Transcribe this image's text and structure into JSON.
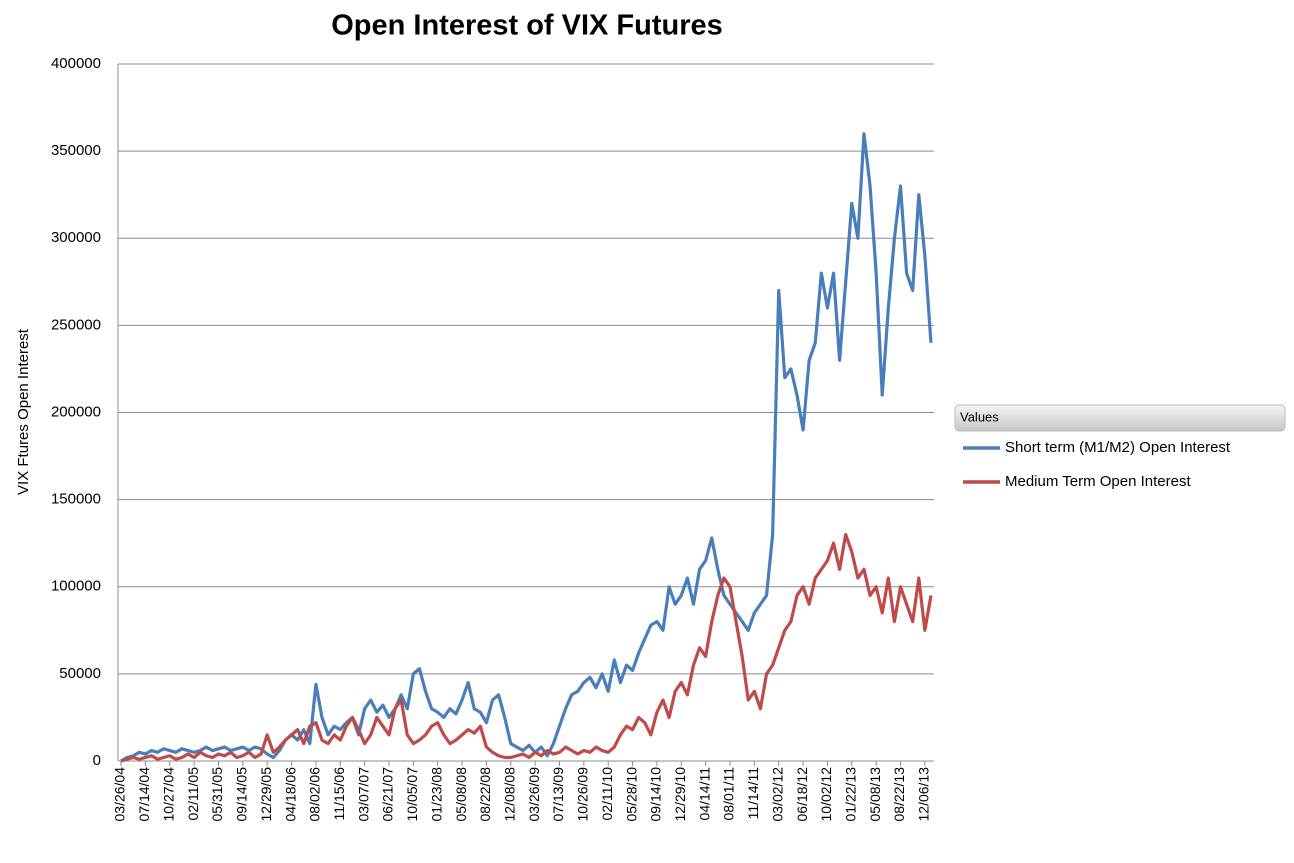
{
  "chart_data": {
    "type": "line",
    "title": "Open Interest of VIX Futures",
    "y_label": "VIX Ftures Open Interest",
    "legend_title": "Values",
    "legend": "right",
    "grid": true,
    "ylim": [
      0,
      400000
    ],
    "yticks": [
      0,
      50000,
      100000,
      150000,
      200000,
      250000,
      300000,
      350000,
      400000
    ],
    "categories": [
      "03/26/04",
      null,
      null,
      null,
      "07/14/04",
      null,
      null,
      null,
      "10/27/04",
      null,
      null,
      null,
      "02/11/05",
      null,
      null,
      null,
      "05/31/05",
      null,
      null,
      null,
      "09/14/05",
      null,
      null,
      null,
      "12/29/05",
      null,
      null,
      null,
      "04/18/06",
      null,
      null,
      null,
      "08/02/06",
      null,
      null,
      null,
      "11/15/06",
      null,
      null,
      null,
      "03/07/07",
      null,
      null,
      null,
      "06/21/07",
      null,
      null,
      null,
      "10/05/07",
      null,
      null,
      null,
      "01/23/08",
      null,
      null,
      null,
      "05/08/08",
      null,
      null,
      null,
      "08/22/08",
      null,
      null,
      null,
      "12/08/08",
      null,
      null,
      null,
      "03/26/09",
      null,
      null,
      null,
      "07/13/09",
      null,
      null,
      null,
      "10/26/09",
      null,
      null,
      null,
      "02/11/10",
      null,
      null,
      null,
      "05/28/10",
      null,
      null,
      null,
      "09/14/10",
      null,
      null,
      null,
      "12/29/10",
      null,
      null,
      null,
      "04/14/11",
      null,
      null,
      null,
      "08/01/11",
      null,
      null,
      null,
      "11/14/11",
      null,
      null,
      null,
      "03/02/12",
      null,
      null,
      null,
      "06/18/12",
      null,
      null,
      null,
      "10/02/12",
      null,
      null,
      null,
      "01/22/13",
      null,
      null,
      null,
      "05/08/13",
      null,
      null,
      null,
      "08/22/13",
      null,
      null,
      null,
      "12/06/13",
      null
    ],
    "series": [
      {
        "name": "Short term (M1/M2) Open Interest",
        "color": "#4a7ebb",
        "values": [
          0,
          2000,
          3000,
          5000,
          4000,
          6000,
          5000,
          7000,
          6000,
          5000,
          7000,
          6000,
          5000,
          6000,
          8000,
          6000,
          7000,
          8000,
          6000,
          7000,
          8000,
          6000,
          8000,
          7000,
          4000,
          2000,
          6000,
          12000,
          15000,
          12000,
          18000,
          10000,
          44000,
          25000,
          15000,
          20000,
          18000,
          22000,
          25000,
          15000,
          30000,
          35000,
          28000,
          32000,
          25000,
          30000,
          38000,
          30000,
          50000,
          53000,
          40000,
          30000,
          28000,
          25000,
          30000,
          27000,
          35000,
          45000,
          30000,
          28000,
          22000,
          35000,
          38000,
          25000,
          10000,
          8000,
          6000,
          9000,
          5000,
          8000,
          3000,
          10000,
          20000,
          30000,
          38000,
          40000,
          45000,
          48000,
          42000,
          50000,
          40000,
          58000,
          45000,
          55000,
          52000,
          62000,
          70000,
          78000,
          80000,
          75000,
          100000,
          90000,
          95000,
          105000,
          90000,
          110000,
          115000,
          128000,
          110000,
          95000,
          90000,
          85000,
          80000,
          75000,
          85000,
          90000,
          95000,
          130000,
          270000,
          220000,
          225000,
          210000,
          190000,
          230000,
          240000,
          280000,
          260000,
          280000,
          230000,
          275000,
          320000,
          300000,
          360000,
          330000,
          280000,
          210000,
          260000,
          300000,
          330000,
          280000,
          270000,
          325000,
          290000,
          240000
        ]
      },
      {
        "name": "Medium Term Open Interest",
        "color": "#be4b48",
        "values": [
          0,
          1000,
          2000,
          1000,
          2000,
          3000,
          1000,
          2000,
          3000,
          1000,
          2000,
          4000,
          2000,
          5000,
          3000,
          2000,
          4000,
          3000,
          5000,
          2000,
          3000,
          5000,
          2000,
          4000,
          15000,
          5000,
          8000,
          12000,
          15000,
          18000,
          10000,
          20000,
          22000,
          12000,
          10000,
          15000,
          12000,
          20000,
          25000,
          18000,
          10000,
          15000,
          25000,
          20000,
          15000,
          30000,
          35000,
          15000,
          10000,
          12000,
          15000,
          20000,
          22000,
          15000,
          10000,
          12000,
          15000,
          18000,
          16000,
          20000,
          8000,
          5000,
          3000,
          2000,
          2000,
          3000,
          4000,
          2000,
          5000,
          3000,
          6000,
          4000,
          5000,
          8000,
          6000,
          4000,
          6000,
          5000,
          8000,
          6000,
          5000,
          8000,
          15000,
          20000,
          18000,
          25000,
          22000,
          15000,
          28000,
          35000,
          25000,
          40000,
          45000,
          38000,
          55000,
          65000,
          60000,
          80000,
          95000,
          105000,
          100000,
          80000,
          60000,
          35000,
          40000,
          30000,
          50000,
          55000,
          65000,
          75000,
          80000,
          95000,
          100000,
          90000,
          105000,
          110000,
          115000,
          125000,
          110000,
          130000,
          120000,
          105000,
          110000,
          95000,
          100000,
          85000,
          105000,
          80000,
          100000,
          90000,
          80000,
          105000,
          75000,
          95000
        ]
      }
    ]
  }
}
